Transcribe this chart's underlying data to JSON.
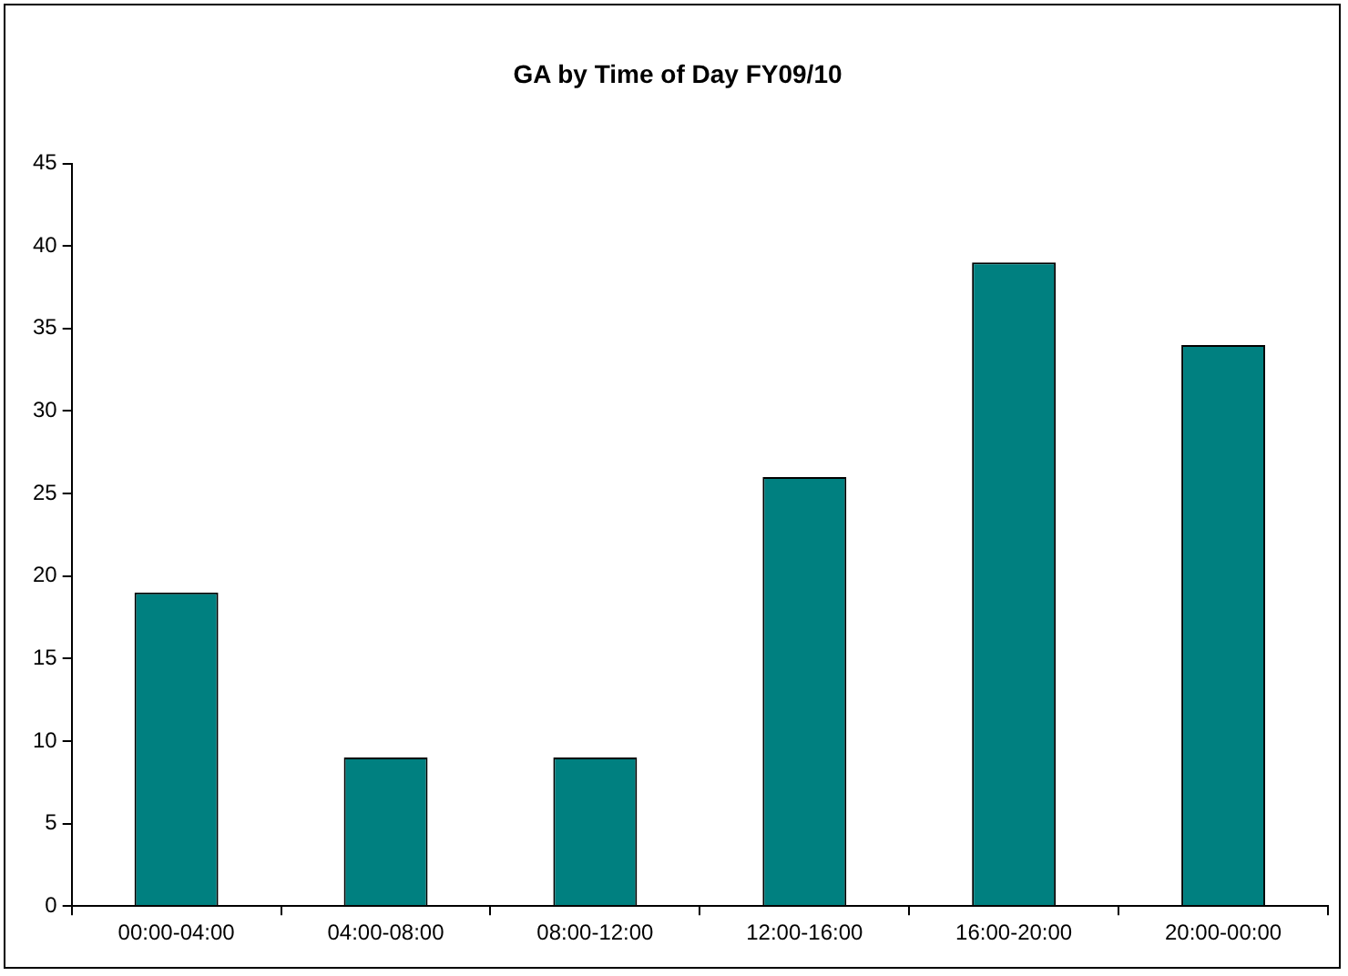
{
  "chart_data": {
    "type": "bar",
    "title": "GA by Time of Day FY09/10",
    "categories": [
      "00:00-04:00",
      "04:00-08:00",
      "08:00-12:00",
      "12:00-16:00",
      "16:00-20:00",
      "20:00-00:00"
    ],
    "values": [
      19,
      9,
      9,
      26,
      39,
      34
    ],
    "color": "#008080",
    "ylim": [
      0,
      45
    ],
    "yticks": [
      0,
      5,
      10,
      15,
      20,
      25,
      30,
      35,
      40,
      45
    ],
    "grid": false,
    "legend": false
  }
}
